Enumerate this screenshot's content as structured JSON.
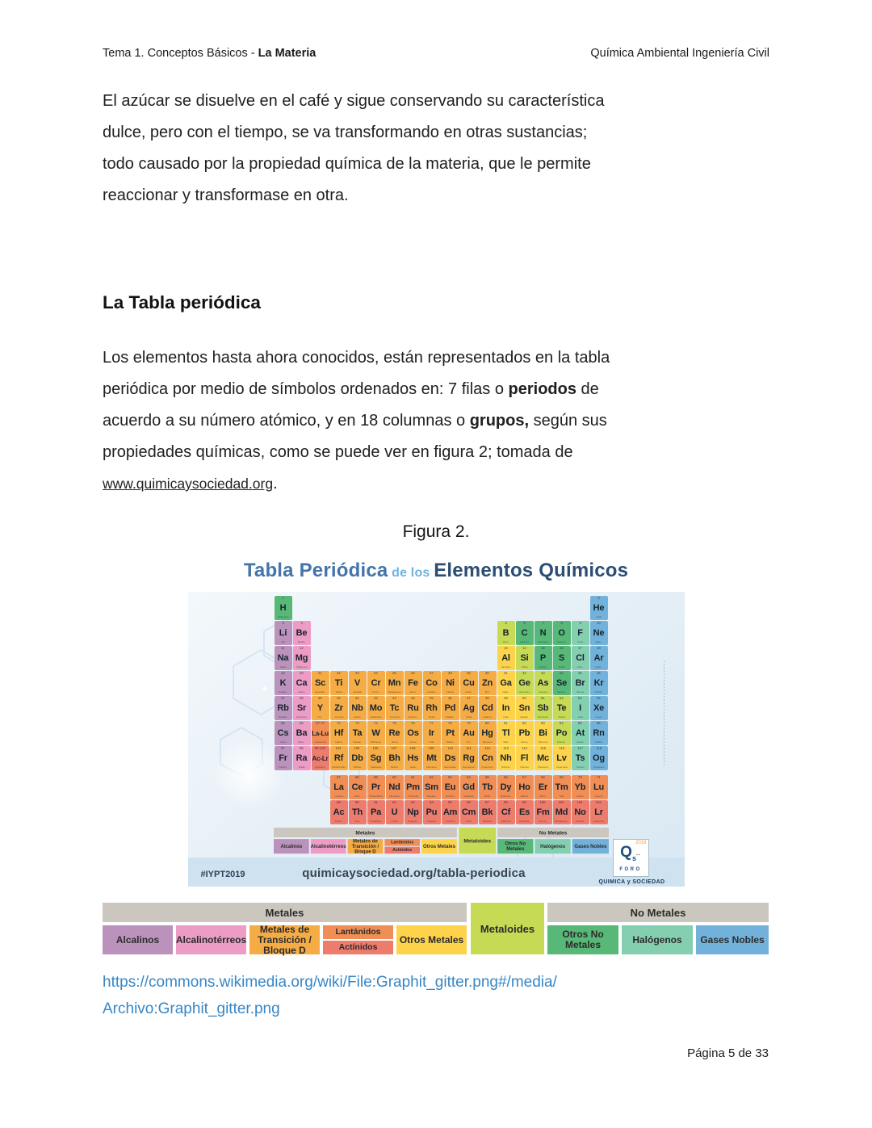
{
  "header": {
    "left_prefix": "Tema 1. Conceptos Básicos - ",
    "left_bold": "La Materia",
    "right": "Química Ambiental Ingeniería Civil"
  },
  "paragraph1": {
    "lines": [
      "El azúcar se disuelve en el café y sigue conservando su característica",
      "dulce, pero con el tiempo, se va transformando en otras sustancias;",
      "todo causado por la propiedad química de la materia, que le permite",
      "reaccionar y transformase en otra."
    ]
  },
  "section": {
    "heading": "La Tabla periódica"
  },
  "paragraph2": {
    "line1": "Los elementos hasta ahora conocidos, están representados en la tabla",
    "line2_a": "periódica por medio de símbolos ordenados en: 7 filas o ",
    "line2_bold": "periodos",
    "line2_b": " de",
    "line3_a": "acuerdo a su número atómico, y en 18 columnas o ",
    "line3_bold": "grupos,",
    "line3_b": " según sus",
    "line4": "propiedades químicas, como se puede ver en figura 2; tomada de",
    "link": "www.quimicaysociedad.org",
    "after_link": "."
  },
  "figure": {
    "caption": "Figura 2.",
    "title": {
      "part1": "Tabla Periódica",
      "part2": "de los",
      "part3": "Elementos Químicos"
    },
    "footer": {
      "hashtag": "#IYPT2019",
      "url": "quimicaysociedad.org/tabla-periodica",
      "logo_year": "2019",
      "logo_q": "Q",
      "logo_sub": "s",
      "logo_dots": "∙∙",
      "logo_foro": "FORO",
      "logo_caption": "QUIMICA y SOCIEDAD"
    }
  },
  "legend": {
    "metals_header": "Metales",
    "nonmetals_header": "No Metales",
    "metaloides": "Metaloides",
    "alcalinos": "Alcalinos",
    "alcalinoterreos": "Alcalinotérreos",
    "transicion": "Metales de\nTransición / Bloque D",
    "lantanidos": "Lantánidos",
    "actinidos": "Actínidos",
    "otros_metales": "Otros Metales",
    "otros_no_metales": "Otros No Metales",
    "halogenos": "Halógenos",
    "gases_nobles": "Gases Nobles"
  },
  "periodic_table": {
    "categories": {
      "alk": {
        "label": "Alcalinos",
        "color": "#ba92bc"
      },
      "aet": {
        "label": "Alcalinotérreos",
        "color": "#ec9cc5"
      },
      "tm": {
        "label": "Metales de Transición / Bloque D",
        "color": "#f6ac44"
      },
      "lan": {
        "label": "Lantánidos",
        "color": "#f08e55"
      },
      "act": {
        "label": "Actínidos",
        "color": "#ee7c6c"
      },
      "om": {
        "label": "Otros Metales",
        "color": "#fcd34b"
      },
      "met": {
        "label": "Metaloides",
        "color": "#c6da55"
      },
      "nm": {
        "label": "Otros No Metales",
        "color": "#58b877"
      },
      "hal": {
        "label": "Halógenos",
        "color": "#85cfb1"
      },
      "gn": {
        "label": "Gases Nobles",
        "color": "#72b2da"
      }
    },
    "elements": [
      {
        "n": 1,
        "s": "H",
        "t": "Hidrógeno",
        "c": "nm",
        "g": 1,
        "p": 1
      },
      {
        "n": 2,
        "s": "He",
        "t": "Helio",
        "c": "gn",
        "g": 18,
        "p": 1
      },
      {
        "n": 3,
        "s": "Li",
        "t": "Litio",
        "c": "alk",
        "g": 1,
        "p": 2
      },
      {
        "n": 4,
        "s": "Be",
        "t": "Berilio",
        "c": "aet",
        "g": 2,
        "p": 2
      },
      {
        "n": 5,
        "s": "B",
        "t": "Boro",
        "c": "met",
        "g": 13,
        "p": 2
      },
      {
        "n": 6,
        "s": "C",
        "t": "Carbono",
        "c": "nm",
        "g": 14,
        "p": 2
      },
      {
        "n": 7,
        "s": "N",
        "t": "Nitrógeno",
        "c": "nm",
        "g": 15,
        "p": 2
      },
      {
        "n": 8,
        "s": "O",
        "t": "Oxígeno",
        "c": "nm",
        "g": 16,
        "p": 2
      },
      {
        "n": 9,
        "s": "F",
        "t": "Flúor",
        "c": "hal",
        "g": 17,
        "p": 2
      },
      {
        "n": 10,
        "s": "Ne",
        "t": "Neón",
        "c": "gn",
        "g": 18,
        "p": 2
      },
      {
        "n": 11,
        "s": "Na",
        "t": "Sodio",
        "c": "alk",
        "g": 1,
        "p": 3
      },
      {
        "n": 12,
        "s": "Mg",
        "t": "Magnesio",
        "c": "aet",
        "g": 2,
        "p": 3
      },
      {
        "n": 13,
        "s": "Al",
        "t": "Aluminio",
        "c": "om",
        "g": 13,
        "p": 3
      },
      {
        "n": 14,
        "s": "Si",
        "t": "Silicio",
        "c": "met",
        "g": 14,
        "p": 3
      },
      {
        "n": 15,
        "s": "P",
        "t": "Fósforo",
        "c": "nm",
        "g": 15,
        "p": 3
      },
      {
        "n": 16,
        "s": "S",
        "t": "Azufre",
        "c": "nm",
        "g": 16,
        "p": 3
      },
      {
        "n": 17,
        "s": "Cl",
        "t": "Cloro",
        "c": "hal",
        "g": 17,
        "p": 3
      },
      {
        "n": 18,
        "s": "Ar",
        "t": "Argón",
        "c": "gn",
        "g": 18,
        "p": 3
      },
      {
        "n": 19,
        "s": "K",
        "t": "Potasio",
        "c": "alk",
        "g": 1,
        "p": 4
      },
      {
        "n": 20,
        "s": "Ca",
        "t": "Calcio",
        "c": "aet",
        "g": 2,
        "p": 4
      },
      {
        "n": 21,
        "s": "Sc",
        "t": "Escandio",
        "c": "tm",
        "g": 3,
        "p": 4
      },
      {
        "n": 22,
        "s": "Ti",
        "t": "Titanio",
        "c": "tm",
        "g": 4,
        "p": 4
      },
      {
        "n": 23,
        "s": "V",
        "t": "Vanadio",
        "c": "tm",
        "g": 5,
        "p": 4
      },
      {
        "n": 24,
        "s": "Cr",
        "t": "Cromo",
        "c": "tm",
        "g": 6,
        "p": 4
      },
      {
        "n": 25,
        "s": "Mn",
        "t": "Manganeso",
        "c": "tm",
        "g": 7,
        "p": 4
      },
      {
        "n": 26,
        "s": "Fe",
        "t": "Hierro",
        "c": "tm",
        "g": 8,
        "p": 4
      },
      {
        "n": 27,
        "s": "Co",
        "t": "Cobalto",
        "c": "tm",
        "g": 9,
        "p": 4
      },
      {
        "n": 28,
        "s": "Ni",
        "t": "Níquel",
        "c": "tm",
        "g": 10,
        "p": 4
      },
      {
        "n": 29,
        "s": "Cu",
        "t": "Cobre",
        "c": "tm",
        "g": 11,
        "p": 4
      },
      {
        "n": 30,
        "s": "Zn",
        "t": "Zinc",
        "c": "tm",
        "g": 12,
        "p": 4
      },
      {
        "n": 31,
        "s": "Ga",
        "t": "Galio",
        "c": "om",
        "g": 13,
        "p": 4
      },
      {
        "n": 32,
        "s": "Ge",
        "t": "Germanio",
        "c": "met",
        "g": 14,
        "p": 4
      },
      {
        "n": 33,
        "s": "As",
        "t": "Arsénico",
        "c": "met",
        "g": 15,
        "p": 4
      },
      {
        "n": 34,
        "s": "Se",
        "t": "Selenio",
        "c": "nm",
        "g": 16,
        "p": 4
      },
      {
        "n": 35,
        "s": "Br",
        "t": "Bromo",
        "c": "hal",
        "g": 17,
        "p": 4
      },
      {
        "n": 36,
        "s": "Kr",
        "t": "Kriptón",
        "c": "gn",
        "g": 18,
        "p": 4
      },
      {
        "n": 37,
        "s": "Rb",
        "t": "Rubidio",
        "c": "alk",
        "g": 1,
        "p": 5
      },
      {
        "n": 38,
        "s": "Sr",
        "t": "Estroncio",
        "c": "aet",
        "g": 2,
        "p": 5
      },
      {
        "n": 39,
        "s": "Y",
        "t": "Itrio",
        "c": "tm",
        "g": 3,
        "p": 5
      },
      {
        "n": 40,
        "s": "Zr",
        "t": "Circonio",
        "c": "tm",
        "g": 4,
        "p": 5
      },
      {
        "n": 41,
        "s": "Nb",
        "t": "Niobio",
        "c": "tm",
        "g": 5,
        "p": 5
      },
      {
        "n": 42,
        "s": "Mo",
        "t": "Molibdeno",
        "c": "tm",
        "g": 6,
        "p": 5
      },
      {
        "n": 43,
        "s": "Tc",
        "t": "Tecnecio",
        "c": "tm",
        "g": 7,
        "p": 5
      },
      {
        "n": 44,
        "s": "Ru",
        "t": "Rutenio",
        "c": "tm",
        "g": 8,
        "p": 5
      },
      {
        "n": 45,
        "s": "Rh",
        "t": "Rodio",
        "c": "tm",
        "g": 9,
        "p": 5
      },
      {
        "n": 46,
        "s": "Pd",
        "t": "Paladio",
        "c": "tm",
        "g": 10,
        "p": 5
      },
      {
        "n": 47,
        "s": "Ag",
        "t": "Plata",
        "c": "tm",
        "g": 11,
        "p": 5
      },
      {
        "n": 48,
        "s": "Cd",
        "t": "Cadmio",
        "c": "tm",
        "g": 12,
        "p": 5
      },
      {
        "n": 49,
        "s": "In",
        "t": "Indio",
        "c": "om",
        "g": 13,
        "p": 5
      },
      {
        "n": 50,
        "s": "Sn",
        "t": "Estaño",
        "c": "om",
        "g": 14,
        "p": 5
      },
      {
        "n": 51,
        "s": "Sb",
        "t": "Antimonio",
        "c": "met",
        "g": 15,
        "p": 5
      },
      {
        "n": 52,
        "s": "Te",
        "t": "Telurio",
        "c": "met",
        "g": 16,
        "p": 5
      },
      {
        "n": 53,
        "s": "I",
        "t": "Yodo",
        "c": "hal",
        "g": 17,
        "p": 5
      },
      {
        "n": 54,
        "s": "Xe",
        "t": "Xenón",
        "c": "gn",
        "g": 18,
        "p": 5
      },
      {
        "n": 55,
        "s": "Cs",
        "t": "Cesio",
        "c": "alk",
        "g": 1,
        "p": 6
      },
      {
        "n": 56,
        "s": "Ba",
        "t": "Bario",
        "c": "aet",
        "g": 2,
        "p": 6
      },
      {
        "n": "57-71",
        "s": "La-Lu",
        "t": "Lantánidos",
        "c": "lan",
        "g": 3,
        "p": 6,
        "wide": true
      },
      {
        "n": 72,
        "s": "Hf",
        "t": "Hafnio",
        "c": "tm",
        "g": 4,
        "p": 6
      },
      {
        "n": 73,
        "s": "Ta",
        "t": "Tántalo",
        "c": "tm",
        "g": 5,
        "p": 6
      },
      {
        "n": 74,
        "s": "W",
        "t": "Wolframio",
        "c": "tm",
        "g": 6,
        "p": 6
      },
      {
        "n": 75,
        "s": "Re",
        "t": "Renio",
        "c": "tm",
        "g": 7,
        "p": 6
      },
      {
        "n": 76,
        "s": "Os",
        "t": "Osmio",
        "c": "tm",
        "g": 8,
        "p": 6
      },
      {
        "n": 77,
        "s": "Ir",
        "t": "Iridio",
        "c": "tm",
        "g": 9,
        "p": 6
      },
      {
        "n": 78,
        "s": "Pt",
        "t": "Platino",
        "c": "tm",
        "g": 10,
        "p": 6
      },
      {
        "n": 79,
        "s": "Au",
        "t": "Oro",
        "c": "tm",
        "g": 11,
        "p": 6
      },
      {
        "n": 80,
        "s": "Hg",
        "t": "Mercurio",
        "c": "tm",
        "g": 12,
        "p": 6
      },
      {
        "n": 81,
        "s": "Tl",
        "t": "Talio",
        "c": "om",
        "g": 13,
        "p": 6
      },
      {
        "n": 82,
        "s": "Pb",
        "t": "Plomo",
        "c": "om",
        "g": 14,
        "p": 6
      },
      {
        "n": 83,
        "s": "Bi",
        "t": "Bismuto",
        "c": "om",
        "g": 15,
        "p": 6
      },
      {
        "n": 84,
        "s": "Po",
        "t": "Polonio",
        "c": "met",
        "g": 16,
        "p": 6
      },
      {
        "n": 85,
        "s": "At",
        "t": "Ástato",
        "c": "hal",
        "g": 17,
        "p": 6
      },
      {
        "n": 86,
        "s": "Rn",
        "t": "Radón",
        "c": "gn",
        "g": 18,
        "p": 6
      },
      {
        "n": 87,
        "s": "Fr",
        "t": "Francio",
        "c": "alk",
        "g": 1,
        "p": 7
      },
      {
        "n": 88,
        "s": "Ra",
        "t": "Radio",
        "c": "aet",
        "g": 2,
        "p": 7
      },
      {
        "n": "89-103",
        "s": "Ac-Lr",
        "t": "Actínidos",
        "c": "act",
        "g": 3,
        "p": 7,
        "wide": true
      },
      {
        "n": 104,
        "s": "Rf",
        "t": "Rutherfordio",
        "c": "tm",
        "g": 4,
        "p": 7
      },
      {
        "n": 105,
        "s": "Db",
        "t": "Dubnio",
        "c": "tm",
        "g": 5,
        "p": 7
      },
      {
        "n": 106,
        "s": "Sg",
        "t": "Seaborgio",
        "c": "tm",
        "g": 6,
        "p": 7
      },
      {
        "n": 107,
        "s": "Bh",
        "t": "Bohrio",
        "c": "tm",
        "g": 7,
        "p": 7
      },
      {
        "n": 108,
        "s": "Hs",
        "t": "Hasio",
        "c": "tm",
        "g": 8,
        "p": 7
      },
      {
        "n": 109,
        "s": "Mt",
        "t": "Meitnerio",
        "c": "tm",
        "g": 9,
        "p": 7
      },
      {
        "n": 110,
        "s": "Ds",
        "t": "Darmstatio",
        "c": "tm",
        "g": 10,
        "p": 7
      },
      {
        "n": 111,
        "s": "Rg",
        "t": "Roentgenio",
        "c": "tm",
        "g": 11,
        "p": 7
      },
      {
        "n": 112,
        "s": "Cn",
        "t": "Copernicio",
        "c": "tm",
        "g": 12,
        "p": 7
      },
      {
        "n": 113,
        "s": "Nh",
        "t": "Nihonio",
        "c": "om",
        "g": 13,
        "p": 7
      },
      {
        "n": 114,
        "s": "Fl",
        "t": "Flerovio",
        "c": "om",
        "g": 14,
        "p": 7
      },
      {
        "n": 115,
        "s": "Mc",
        "t": "Moscovio",
        "c": "om",
        "g": 15,
        "p": 7
      },
      {
        "n": 116,
        "s": "Lv",
        "t": "Livermorio",
        "c": "om",
        "g": 16,
        "p": 7
      },
      {
        "n": 117,
        "s": "Ts",
        "t": "Teneso",
        "c": "hal",
        "g": 17,
        "p": 7
      },
      {
        "n": 118,
        "s": "Og",
        "t": "Oganesón",
        "c": "gn",
        "g": 18,
        "p": 7
      },
      {
        "n": 57,
        "s": "La",
        "t": "Lantano",
        "c": "lan",
        "g": 4,
        "p": "L"
      },
      {
        "n": 58,
        "s": "Ce",
        "t": "Cerio",
        "c": "lan",
        "g": 5,
        "p": "L"
      },
      {
        "n": 59,
        "s": "Pr",
        "t": "Praseodimio",
        "c": "lan",
        "g": 6,
        "p": "L"
      },
      {
        "n": 60,
        "s": "Nd",
        "t": "Neodimio",
        "c": "lan",
        "g": 7,
        "p": "L"
      },
      {
        "n": 61,
        "s": "Pm",
        "t": "Prometio",
        "c": "lan",
        "g": 8,
        "p": "L"
      },
      {
        "n": 62,
        "s": "Sm",
        "t": "Samario",
        "c": "lan",
        "g": 9,
        "p": "L"
      },
      {
        "n": 63,
        "s": "Eu",
        "t": "Europio",
        "c": "lan",
        "g": 10,
        "p": "L"
      },
      {
        "n": 64,
        "s": "Gd",
        "t": "Gadolinio",
        "c": "lan",
        "g": 11,
        "p": "L"
      },
      {
        "n": 65,
        "s": "Tb",
        "t": "Terbio",
        "c": "lan",
        "g": 12,
        "p": "L"
      },
      {
        "n": 66,
        "s": "Dy",
        "t": "Disprosio",
        "c": "lan",
        "g": 13,
        "p": "L"
      },
      {
        "n": 67,
        "s": "Ho",
        "t": "Holmio",
        "c": "lan",
        "g": 14,
        "p": "L"
      },
      {
        "n": 68,
        "s": "Er",
        "t": "Erbio",
        "c": "lan",
        "g": 15,
        "p": "L"
      },
      {
        "n": 69,
        "s": "Tm",
        "t": "Tulio",
        "c": "lan",
        "g": 16,
        "p": "L"
      },
      {
        "n": 70,
        "s": "Yb",
        "t": "Iterbio",
        "c": "lan",
        "g": 17,
        "p": "L"
      },
      {
        "n": 71,
        "s": "Lu",
        "t": "Lutecio",
        "c": "lan",
        "g": 18,
        "p": "L"
      },
      {
        "n": 89,
        "s": "Ac",
        "t": "Actinio",
        "c": "act",
        "g": 4,
        "p": "A"
      },
      {
        "n": 90,
        "s": "Th",
        "t": "Torio",
        "c": "act",
        "g": 5,
        "p": "A"
      },
      {
        "n": 91,
        "s": "Pa",
        "t": "Protactinio",
        "c": "act",
        "g": 6,
        "p": "A"
      },
      {
        "n": 92,
        "s": "U",
        "t": "Uranio",
        "c": "act",
        "g": 7,
        "p": "A"
      },
      {
        "n": 93,
        "s": "Np",
        "t": "Neptunio",
        "c": "act",
        "g": 8,
        "p": "A"
      },
      {
        "n": 94,
        "s": "Pu",
        "t": "Plutonio",
        "c": "act",
        "g": 9,
        "p": "A"
      },
      {
        "n": 95,
        "s": "Am",
        "t": "Americio",
        "c": "act",
        "g": 10,
        "p": "A"
      },
      {
        "n": 96,
        "s": "Cm",
        "t": "Curio",
        "c": "act",
        "g": 11,
        "p": "A"
      },
      {
        "n": 97,
        "s": "Bk",
        "t": "Berkelio",
        "c": "act",
        "g": 12,
        "p": "A"
      },
      {
        "n": 98,
        "s": "Cf",
        "t": "Californio",
        "c": "act",
        "g": 13,
        "p": "A"
      },
      {
        "n": 99,
        "s": "Es",
        "t": "Einstenio",
        "c": "act",
        "g": 14,
        "p": "A"
      },
      {
        "n": 100,
        "s": "Fm",
        "t": "Fermio",
        "c": "act",
        "g": 15,
        "p": "A"
      },
      {
        "n": 101,
        "s": "Md",
        "t": "Mendelevio",
        "c": "act",
        "g": 16,
        "p": "A"
      },
      {
        "n": 102,
        "s": "No",
        "t": "Nobelio",
        "c": "act",
        "g": 17,
        "p": "A"
      },
      {
        "n": 103,
        "s": "Lr",
        "t": "Laurencio",
        "c": "act",
        "g": 18,
        "p": "A"
      }
    ]
  },
  "links": {
    "line1": "https://commons.wikimedia.org/wiki/File:Graphit_gitter.png#/media/",
    "line2": "Archivo:Graphit_gitter.png"
  },
  "page_number": "Página 5 de 33"
}
